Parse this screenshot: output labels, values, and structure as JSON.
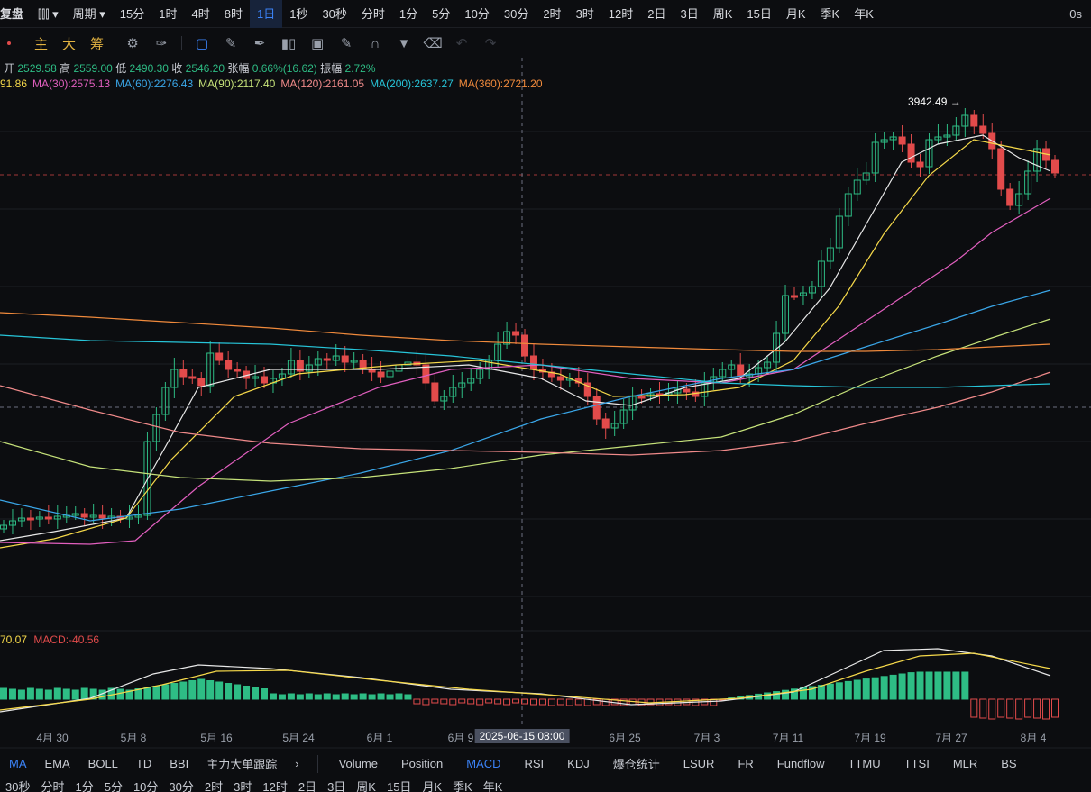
{
  "topbar": {
    "replay": "复盘",
    "chart_type_icon": "candlestick-icon",
    "period_menu": "周期",
    "periods": [
      "15分",
      "1时",
      "4时",
      "8时",
      "1日",
      "1秒",
      "30秒",
      "分时",
      "1分",
      "5分",
      "10分",
      "30分",
      "2时",
      "3时",
      "12时",
      "2日",
      "3日",
      "周K",
      "15日",
      "月K",
      "季K",
      "年K"
    ],
    "active_period": "1日",
    "right": "0s"
  },
  "toolbar": {
    "labels": [
      "主",
      "大",
      "筹"
    ],
    "tools": [
      "layers-icon",
      "brush-icon",
      "pen-icon",
      "bars-icon",
      "lock-icon",
      "edit-icon",
      "magnet-icon",
      "filter-icon",
      "trash-icon",
      "undo-icon",
      "redo-icon"
    ]
  },
  "ohlc": {
    "open_label": "开",
    "open": "2529.58",
    "high_label": "高",
    "high": "2559.00",
    "low_label": "低",
    "low": "2490.30",
    "close_label": "收",
    "close": "2546.20",
    "chg_label": "张幅",
    "chg": "0.66%(16.62)",
    "amp_label": "振幅",
    "amp": "2.72%"
  },
  "ma_values": [
    {
      "text": "91.86",
      "color": "#f6d94a"
    },
    {
      "text": "MA(30):2575.13",
      "color": "#e25fbf"
    },
    {
      "text": "MA(60):2276.43",
      "color": "#3aa6e8"
    },
    {
      "text": "MA(90):2117.40",
      "color": "#c6e27a"
    },
    {
      "text": "MA(120):2161.05",
      "color": "#f08a8a"
    },
    {
      "text": "MA(200):2637.27",
      "color": "#27c5d9"
    },
    {
      "text": "MA(360):2721.20",
      "color": "#f08a3c"
    }
  ],
  "high_marker": "3942.49",
  "macd": {
    "dif": "70.07",
    "macd_label": "MACD:-40.56"
  },
  "xaxis": {
    "labels": [
      "4月 30",
      "5月 8",
      "5月 16",
      "5月 24",
      "6月 1",
      "6月 9",
      "6月 25",
      "7月 3",
      "7月 11",
      "7月 19",
      "7月 27",
      "8月 4"
    ],
    "crosshair": "2025-06-15 08:00"
  },
  "indicators_main": [
    "MA",
    "EMA",
    "BOLL",
    "TD",
    "BBI",
    "主力大单跟踪"
  ],
  "indicators_sub": [
    "Volume",
    "Position",
    "MACD",
    "RSI",
    "KDJ",
    "爆仓统计",
    "LSUR",
    "FR",
    "Fundflow",
    "TTMU",
    "TTSI",
    "MLR",
    "BS"
  ],
  "active_main": "MA",
  "active_sub": "MACD",
  "bottom_periods": [
    "30秒",
    "分时",
    "1分",
    "5分",
    "10分",
    "30分",
    "2时",
    "3时",
    "12时",
    "2日",
    "3日",
    "周K",
    "15日",
    "月K",
    "季K",
    "年K"
  ],
  "colors": {
    "up": "#2ebd85",
    "down": "#e24b4b",
    "accent": "#3b82f6",
    "crosshair": "#6b7080",
    "price_line": "#e24b4b"
  }
}
